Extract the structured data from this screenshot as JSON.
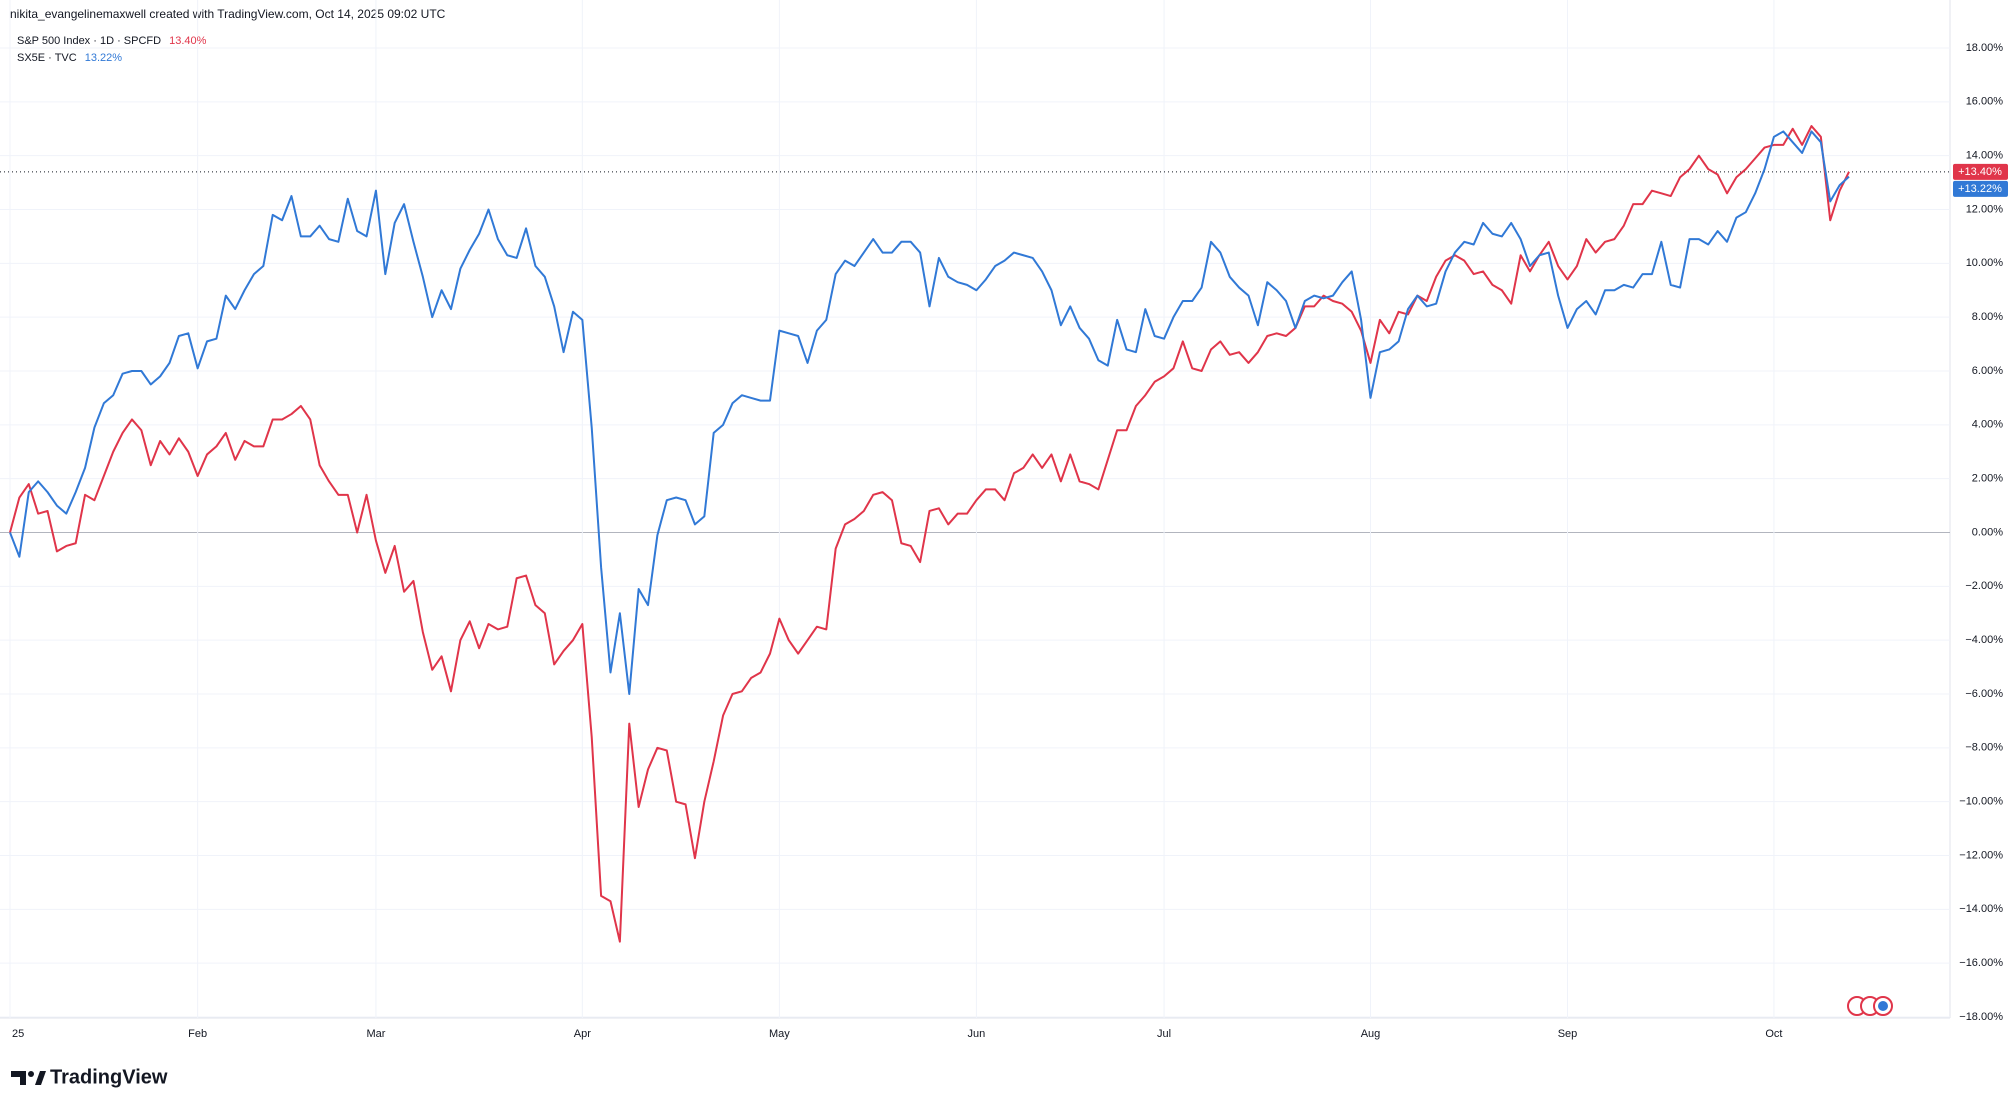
{
  "header": "nikita_evangelinemaxwell created with TradingView.com, Oct 14, 2025 09:02 UTC",
  "footer_brand": "TradingView",
  "chart_data": {
    "type": "line",
    "categories": [
      "25",
      null,
      null,
      null,
      null,
      null,
      null,
      null,
      null,
      null,
      null,
      null,
      null,
      null,
      null,
      null,
      null,
      null,
      null,
      null,
      "Feb",
      null,
      null,
      null,
      null,
      null,
      null,
      null,
      null,
      null,
      null,
      null,
      null,
      null,
      null,
      null,
      null,
      null,
      null,
      "Mar",
      null,
      null,
      null,
      null,
      null,
      null,
      null,
      null,
      null,
      null,
      null,
      null,
      null,
      null,
      null,
      null,
      null,
      null,
      null,
      null,
      null,
      "Apr",
      null,
      null,
      null,
      null,
      null,
      null,
      null,
      null,
      null,
      null,
      null,
      null,
      null,
      null,
      null,
      null,
      null,
      null,
      null,
      null,
      "May",
      null,
      null,
      null,
      null,
      null,
      null,
      null,
      null,
      null,
      null,
      null,
      null,
      null,
      null,
      null,
      null,
      null,
      null,
      null,
      null,
      "Jun",
      null,
      null,
      null,
      null,
      null,
      null,
      null,
      null,
      null,
      null,
      null,
      null,
      null,
      null,
      null,
      null,
      null,
      null,
      null,
      "Jul",
      null,
      null,
      null,
      null,
      null,
      null,
      null,
      null,
      null,
      null,
      null,
      null,
      null,
      null,
      null,
      null,
      null,
      null,
      null,
      null,
      null,
      "Aug",
      null,
      null,
      null,
      null,
      null,
      null,
      null,
      null,
      null,
      null,
      null,
      null,
      null,
      null,
      null,
      null,
      null,
      null,
      null,
      null,
      "Sep",
      null,
      null,
      null,
      null,
      null,
      null,
      null,
      null,
      null,
      null,
      null,
      null,
      null,
      null,
      null,
      null,
      null,
      null,
      null,
      null,
      null,
      "Oct",
      null,
      null,
      null,
      null,
      null,
      null,
      null,
      null
    ],
    "series": [
      {
        "name": "S&P 500 Index · 1D · SPCFD",
        "legend_value": "13.40%",
        "last_label": "+13.40%",
        "color": "#e0354a",
        "values": [
          0,
          1.3,
          1.8,
          0.7,
          0.8,
          -0.7,
          -0.5,
          -0.4,
          1.4,
          1.2,
          2.1,
          3.0,
          3.7,
          4.2,
          3.8,
          2.5,
          3.4,
          2.9,
          3.5,
          3.0,
          2.1,
          2.9,
          3.2,
          3.7,
          2.7,
          3.4,
          3.2,
          3.2,
          4.2,
          4.2,
          4.4,
          4.7,
          4.2,
          2.5,
          1.9,
          1.4,
          1.4,
          0.0,
          1.4,
          -0.3,
          -1.5,
          -0.5,
          -2.2,
          -1.8,
          -3.7,
          -5.1,
          -4.6,
          -5.9,
          -4.0,
          -3.3,
          -4.3,
          -3.4,
          -3.6,
          -3.5,
          -1.7,
          -1.6,
          -2.7,
          -3.0,
          -4.9,
          -4.4,
          -4.0,
          -3.4,
          -7.6,
          -13.5,
          -13.7,
          -15.2,
          -7.1,
          -10.2,
          -8.8,
          -8.0,
          -8.1,
          -10.0,
          -10.1,
          -12.1,
          -10.0,
          -8.5,
          -6.8,
          -6.0,
          -5.9,
          -5.4,
          -5.2,
          -4.5,
          -3.2,
          -4.0,
          -4.5,
          -4.0,
          -3.5,
          -3.6,
          -0.6,
          0.3,
          0.5,
          0.8,
          1.4,
          1.5,
          1.2,
          -0.4,
          -0.5,
          -1.1,
          0.8,
          0.9,
          0.3,
          0.7,
          0.7,
          1.2,
          1.6,
          1.6,
          1.2,
          2.2,
          2.4,
          2.9,
          2.4,
          2.9,
          1.9,
          2.9,
          1.9,
          1.8,
          1.6,
          2.7,
          3.8,
          3.8,
          4.7,
          5.1,
          5.6,
          5.8,
          6.1,
          7.1,
          6.1,
          6.0,
          6.8,
          7.1,
          6.6,
          6.7,
          6.3,
          6.7,
          7.3,
          7.4,
          7.3,
          7.6,
          8.4,
          8.4,
          8.8,
          8.6,
          8.5,
          8.2,
          7.5,
          6.3,
          7.9,
          7.4,
          8.2,
          8.1,
          8.8,
          8.6,
          9.5,
          10.1,
          10.3,
          10.1,
          9.6,
          9.7,
          9.2,
          9.0,
          8.5,
          10.3,
          9.7,
          10.3,
          10.8,
          9.9,
          9.4,
          9.9,
          10.9,
          10.4,
          10.8,
          10.9,
          11.4,
          12.2,
          12.2,
          12.7,
          12.6,
          12.5,
          13.2,
          13.5,
          14.0,
          13.5,
          13.3,
          12.6,
          13.2,
          13.5,
          13.9,
          14.3,
          14.4,
          14.4,
          15.0,
          14.4,
          15.1,
          14.7,
          11.6,
          12.7,
          13.4
        ]
      },
      {
        "name": "SX5E · TVC",
        "legend_value": "13.22%",
        "last_label": "+13.22%",
        "color": "#3179d6",
        "values": [
          0,
          -0.9,
          1.5,
          1.9,
          1.5,
          1.0,
          0.7,
          1.5,
          2.4,
          3.9,
          4.8,
          5.1,
          5.9,
          6.0,
          6.0,
          5.5,
          5.8,
          6.3,
          7.3,
          7.4,
          6.1,
          7.1,
          7.2,
          8.8,
          8.3,
          9.0,
          9.6,
          9.9,
          11.8,
          11.6,
          12.5,
          11.0,
          11.0,
          11.4,
          10.9,
          10.8,
          12.4,
          11.2,
          11.0,
          12.7,
          9.6,
          11.5,
          12.2,
          10.8,
          9.5,
          8.0,
          9.0,
          8.3,
          9.8,
          10.5,
          11.1,
          12.0,
          10.9,
          10.3,
          10.2,
          11.3,
          9.9,
          9.5,
          8.4,
          6.7,
          8.2,
          7.9,
          3.9,
          -1.3,
          -5.2,
          -3.0,
          -6.0,
          -2.1,
          -2.7,
          -0.1,
          1.2,
          1.3,
          1.2,
          0.3,
          0.6,
          3.7,
          4.0,
          4.8,
          5.1,
          5.0,
          4.9,
          4.9,
          7.5,
          7.4,
          7.3,
          6.3,
          7.5,
          7.9,
          9.6,
          10.1,
          9.9,
          10.4,
          10.9,
          10.4,
          10.4,
          10.8,
          10.8,
          10.4,
          8.4,
          10.2,
          9.5,
          9.3,
          9.2,
          9.0,
          9.4,
          9.9,
          10.1,
          10.4,
          10.3,
          10.2,
          9.7,
          9.0,
          7.7,
          8.4,
          7.6,
          7.2,
          6.4,
          6.2,
          7.9,
          6.8,
          6.7,
          8.3,
          7.3,
          7.2,
          8.0,
          8.6,
          8.6,
          9.1,
          10.8,
          10.4,
          9.5,
          9.1,
          8.8,
          7.7,
          9.3,
          9.0,
          8.6,
          7.6,
          8.6,
          8.8,
          8.7,
          8.8,
          9.3,
          9.7,
          7.9,
          5.0,
          6.7,
          6.8,
          7.1,
          8.3,
          8.8,
          8.4,
          8.5,
          9.7,
          10.4,
          10.8,
          10.7,
          11.5,
          11.1,
          11.0,
          11.5,
          10.9,
          9.9,
          10.3,
          10.4,
          8.8,
          7.6,
          8.3,
          8.6,
          8.1,
          9.0,
          9.0,
          9.2,
          9.1,
          9.6,
          9.6,
          10.8,
          9.2,
          9.1,
          10.9,
          10.9,
          10.7,
          11.2,
          10.8,
          11.7,
          11.9,
          12.6,
          13.5,
          14.7,
          14.9,
          14.5,
          14.1,
          14.9,
          14.5,
          12.3,
          12.9,
          13.22
        ]
      }
    ],
    "ylim": [
      -18,
      18
    ],
    "yticks": [
      {
        "value": 18,
        "label": "18.00%"
      },
      {
        "value": 16,
        "label": "16.00%"
      },
      {
        "value": 14,
        "label": "14.00%"
      },
      {
        "value": 12,
        "label": "12.00%"
      },
      {
        "value": 10,
        "label": "10.00%"
      },
      {
        "value": 8,
        "label": "8.00%"
      },
      {
        "value": 6,
        "label": "6.00%"
      },
      {
        "value": 4,
        "label": "4.00%"
      },
      {
        "value": 2,
        "label": "2.00%"
      },
      {
        "value": 0,
        "label": "0.00%"
      },
      {
        "value": -2,
        "label": "−2.00%"
      },
      {
        "value": -4,
        "label": "−4.00%"
      },
      {
        "value": -6,
        "label": "−6.00%"
      },
      {
        "value": -8,
        "label": "−8.00%"
      },
      {
        "value": -10,
        "label": "−10.00%"
      },
      {
        "value": -12,
        "label": "−12.00%"
      },
      {
        "value": -14,
        "label": "−14.00%"
      },
      {
        "value": -16,
        "label": "−16.00%"
      },
      {
        "value": -18,
        "label": "−18.00%"
      }
    ],
    "grid": true
  }
}
